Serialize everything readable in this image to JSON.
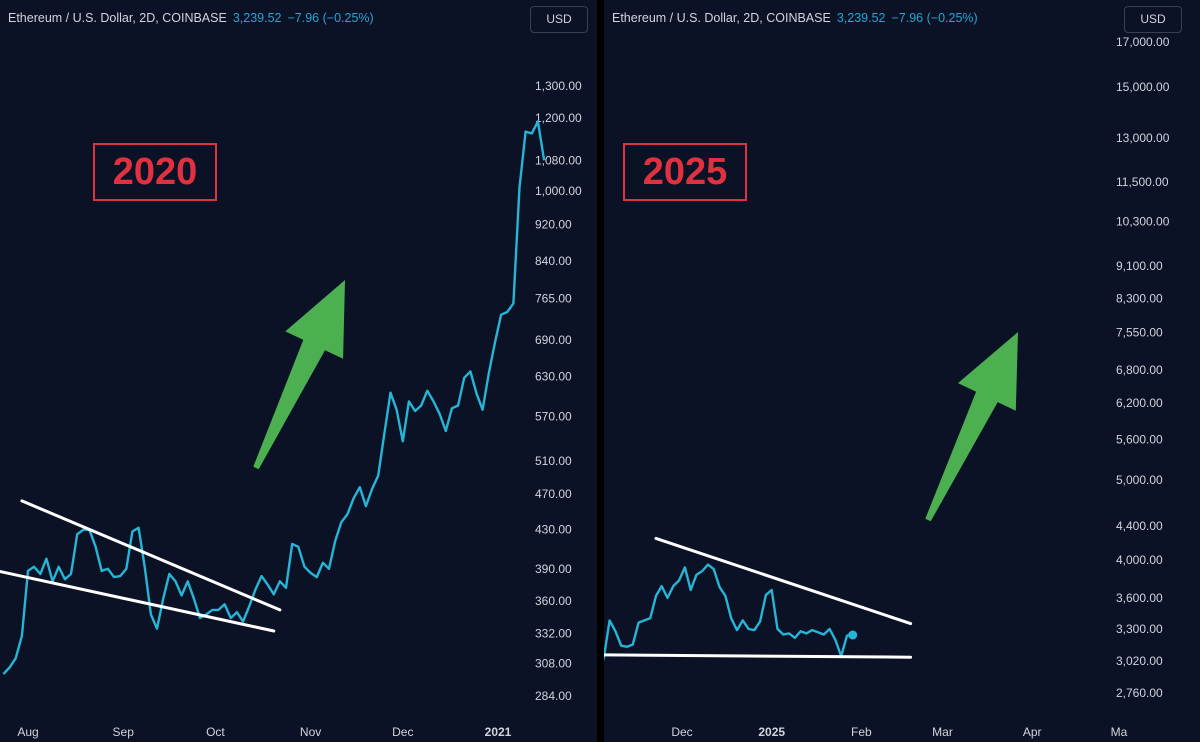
{
  "panels": [
    {
      "header": {
        "title": "Ethereum / U.S. Dollar, 2D, COINBASE",
        "price": "3,239.52",
        "change": "−7.96 (−0.25%)"
      },
      "currency_button": "USD",
      "year_label": "2020"
    },
    {
      "header": {
        "title": "Ethereum / U.S. Dollar, 2D, COINBASE",
        "price": "3,239.52",
        "change": "−7.96 (−0.25%)"
      },
      "currency_button": "USD",
      "year_label": "2025"
    }
  ],
  "colors": {
    "background": "#0b1226",
    "line": "#26b5d6",
    "trendline": "#ffffff",
    "arrow": "#4caf50",
    "label": "#e03140",
    "text": "#d1d4dc"
  },
  "chart_data": [
    {
      "type": "line",
      "scale": "log",
      "y_ticks": [
        "1,300.00",
        "1,200.00",
        "1,080.00",
        "1,000.00",
        "920.00",
        "840.00",
        "765.00",
        "690.00",
        "630.00",
        "570.00",
        "510.00",
        "470.00",
        "430.00",
        "390.00",
        "360.00",
        "332.00",
        "308.00",
        "284.00"
      ],
      "x_ticks": [
        {
          "label": "Aug",
          "day": 0,
          "bold": false
        },
        {
          "label": "Sep",
          "day": 31,
          "bold": false
        },
        {
          "label": "Oct",
          "day": 61,
          "bold": false
        },
        {
          "label": "Nov",
          "day": 92,
          "bold": false
        },
        {
          "label": "Dec",
          "day": 122,
          "bold": false
        },
        {
          "label": "2021",
          "day": 153,
          "bold": true
        }
      ],
      "series": [
        {
          "values": [
            [
              -8,
              300
            ],
            [
              -6,
              305
            ],
            [
              -4,
              312
            ],
            [
              -2,
              330
            ],
            [
              0,
              388
            ],
            [
              2,
              392
            ],
            [
              4,
              385
            ],
            [
              6,
              400
            ],
            [
              8,
              378
            ],
            [
              10,
              392
            ],
            [
              12,
              380
            ],
            [
              14,
              385
            ],
            [
              16,
              425
            ],
            [
              18,
              430
            ],
            [
              20,
              430
            ],
            [
              22,
              412
            ],
            [
              24,
              388
            ],
            [
              26,
              390
            ],
            [
              28,
              382
            ],
            [
              30,
              383
            ],
            [
              32,
              390
            ],
            [
              34,
              428
            ],
            [
              36,
              432
            ],
            [
              38,
              392
            ],
            [
              40,
              348
            ],
            [
              42,
              336
            ],
            [
              44,
              362
            ],
            [
              46,
              385
            ],
            [
              48,
              378
            ],
            [
              50,
              365
            ],
            [
              52,
              378
            ],
            [
              54,
              362
            ],
            [
              56,
              345
            ],
            [
              58,
              348
            ],
            [
              60,
              352
            ],
            [
              62,
              352
            ],
            [
              64,
              357
            ],
            [
              66,
              345
            ],
            [
              68,
              350
            ],
            [
              70,
              342
            ],
            [
              72,
              355
            ],
            [
              74,
              370
            ],
            [
              76,
              383
            ],
            [
              78,
              375
            ],
            [
              80,
              366
            ],
            [
              82,
              378
            ],
            [
              84,
              372
            ],
            [
              86,
              415
            ],
            [
              88,
              412
            ],
            [
              90,
              392
            ],
            [
              92,
              386
            ],
            [
              94,
              382
            ],
            [
              96,
              396
            ],
            [
              98,
              390
            ],
            [
              100,
              418
            ],
            [
              102,
              438
            ],
            [
              104,
              447
            ],
            [
              106,
              465
            ],
            [
              108,
              478
            ],
            [
              110,
              456
            ],
            [
              112,
              476
            ],
            [
              114,
              492
            ],
            [
              116,
              546
            ],
            [
              118,
              605
            ],
            [
              120,
              580
            ],
            [
              122,
              536
            ],
            [
              124,
              592
            ],
            [
              126,
              578
            ],
            [
              128,
              586
            ],
            [
              130,
              608
            ],
            [
              132,
              592
            ],
            [
              134,
              574
            ],
            [
              136,
              550
            ],
            [
              138,
              582
            ],
            [
              140,
              586
            ],
            [
              142,
              628
            ],
            [
              144,
              638
            ],
            [
              146,
              604
            ],
            [
              148,
              580
            ],
            [
              150,
              635
            ],
            [
              152,
              685
            ],
            [
              154,
              735
            ],
            [
              156,
              740
            ],
            [
              158,
              756
            ],
            [
              160,
              1010
            ],
            [
              162,
              1160
            ],
            [
              164,
              1155
            ],
            [
              166,
              1190
            ],
            [
              168,
              1080
            ]
          ]
        }
      ],
      "trendlines": [
        {
          "from": [
            -10,
            388
          ],
          "to": [
            80,
            334
          ]
        },
        {
          "from": [
            -2,
            462
          ],
          "to": [
            82,
            352
          ]
        }
      ]
    },
    {
      "type": "line",
      "scale": "log",
      "y_ticks": [
        "17,000.00",
        "15,000.00",
        "13,000.00",
        "11,500.00",
        "10,300.00",
        "9,100.00",
        "8,300.00",
        "7,550.00",
        "6,800.00",
        "6,200.00",
        "5,600.00",
        "5,000.00",
        "4,400.00",
        "4,000.00",
        "3,600.00",
        "3,300.00",
        "3,020.00",
        "2,760.00"
      ],
      "x_ticks": [
        {
          "label": "Dec",
          "day": 0,
          "bold": false
        },
        {
          "label": "2025",
          "day": 31,
          "bold": true
        },
        {
          "label": "Feb",
          "day": 62,
          "bold": false
        },
        {
          "label": "Mar",
          "day": 90,
          "bold": false
        },
        {
          "label": "Apr",
          "day": 121,
          "bold": false
        },
        {
          "label": "Ma",
          "day": 151,
          "bold": false
        }
      ],
      "series": [
        {
          "values": [
            [
              -29,
              2880
            ],
            [
              -27,
              3050
            ],
            [
              -25,
              3380
            ],
            [
              -23,
              3280
            ],
            [
              -21,
              3150
            ],
            [
              -19,
              3140
            ],
            [
              -17,
              3160
            ],
            [
              -15,
              3360
            ],
            [
              -13,
              3380
            ],
            [
              -11,
              3400
            ],
            [
              -9,
              3620
            ],
            [
              -7,
              3720
            ],
            [
              -5,
              3600
            ],
            [
              -3,
              3720
            ],
            [
              -1,
              3780
            ],
            [
              1,
              3920
            ],
            [
              3,
              3680
            ],
            [
              5,
              3840
            ],
            [
              7,
              3880
            ],
            [
              9,
              3950
            ],
            [
              11,
              3900
            ],
            [
              13,
              3710
            ],
            [
              15,
              3620
            ],
            [
              17,
              3400
            ],
            [
              19,
              3290
            ],
            [
              21,
              3380
            ],
            [
              23,
              3300
            ],
            [
              25,
              3290
            ],
            [
              27,
              3370
            ],
            [
              29,
              3630
            ],
            [
              31,
              3680
            ],
            [
              33,
              3300
            ],
            [
              35,
              3250
            ],
            [
              37,
              3260
            ],
            [
              39,
              3220
            ],
            [
              41,
              3280
            ],
            [
              43,
              3260
            ],
            [
              45,
              3290
            ],
            [
              47,
              3270
            ],
            [
              49,
              3250
            ],
            [
              51,
              3300
            ],
            [
              53,
              3200
            ],
            [
              55,
              3060
            ],
            [
              57,
              3240
            ],
            [
              59,
              3245
            ]
          ]
        }
      ],
      "last_point": [
        59,
        3245
      ],
      "trendlines": [
        {
          "from": [
            -27,
            3070
          ],
          "to": [
            79,
            3050
          ]
        },
        {
          "from": [
            -9,
            4250
          ],
          "to": [
            79,
            3350
          ]
        }
      ]
    }
  ]
}
